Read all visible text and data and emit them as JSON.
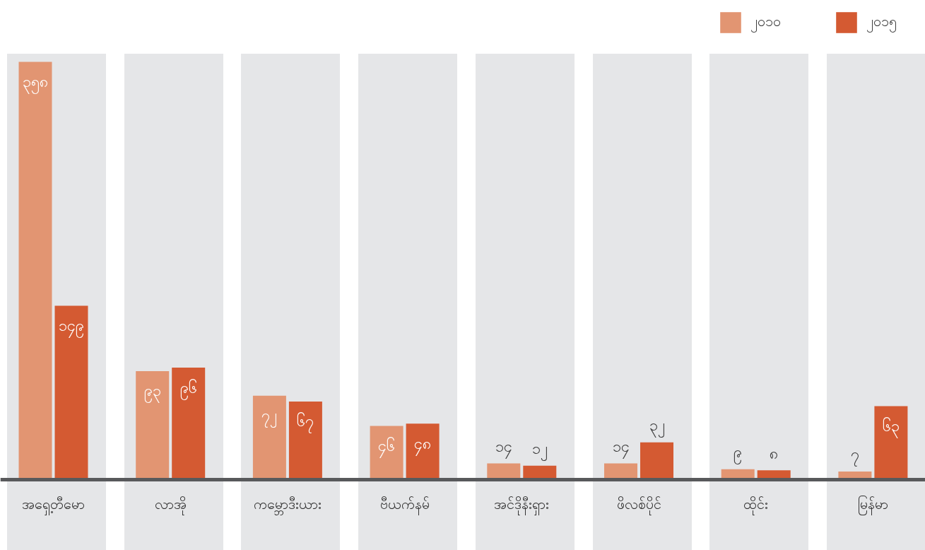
{
  "chart_data": {
    "type": "bar",
    "categories": [
      "အရှေ့တီမော",
      "လာအို",
      "ကမ္ဘောဒီးယား",
      "ဗီယက်နမ်",
      "အင်ဒိုနီးရှား",
      "ဖိလစ်ပိုင်",
      "ထိုင်း",
      "မြန်မာ"
    ],
    "series": [
      {
        "name": "၂၀၁၀",
        "color": "#e29572",
        "values": [
          358,
          93,
          72,
          46,
          14,
          14,
          9,
          7
        ],
        "value_labels": [
          "၃၅၈",
          "၉၃",
          "၇၂",
          "၄၆",
          "၁၄",
          "၁၄",
          "၉",
          "၇"
        ]
      },
      {
        "name": "၂၀၁၅",
        "color": "#d45a32",
        "values": [
          149,
          96,
          67,
          48,
          12,
          32,
          8,
          63
        ],
        "value_labels": [
          "၁၄၉",
          "၉၆",
          "၆၇",
          "၄၈",
          "၁၂",
          "၃၂",
          "၈",
          "၆၃"
        ]
      }
    ],
    "legend": "top right"
  }
}
